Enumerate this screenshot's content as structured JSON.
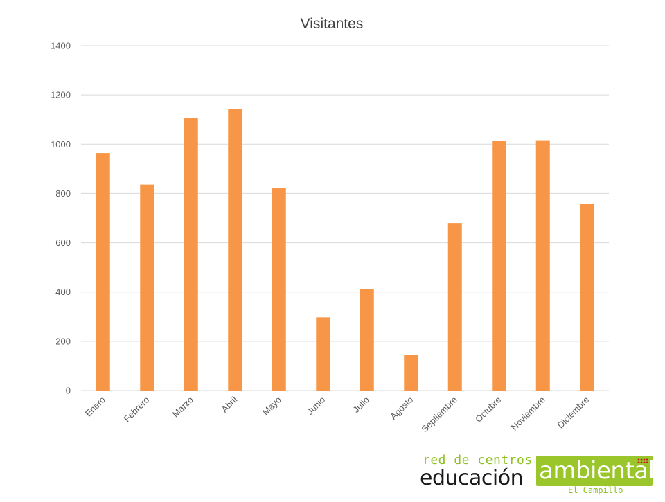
{
  "chart_data": {
    "type": "bar",
    "title": "Visitantes",
    "xlabel": "",
    "ylabel": "",
    "categories": [
      "Enero",
      "Febrero",
      "Marzo",
      "Abril",
      "Mayo",
      "Junio",
      "Julio",
      "Agosto",
      "Septiembre",
      "Octubre",
      "Noviembre",
      "Diciembre"
    ],
    "values": [
      964,
      836,
      1106,
      1143,
      823,
      297,
      412,
      145,
      680,
      1014,
      1016,
      758
    ],
    "ylim": [
      0,
      1400
    ],
    "yticks": [
      0,
      200,
      400,
      600,
      800,
      1000,
      1200,
      1400
    ],
    "grid": true,
    "legend": "none",
    "bar_color": "#f79646"
  },
  "logo": {
    "top_text": "red de centros",
    "left_text": "educación",
    "box_text": "ambiental",
    "sub_text": "El Campillo",
    "accent_color": "#9bc62b"
  }
}
